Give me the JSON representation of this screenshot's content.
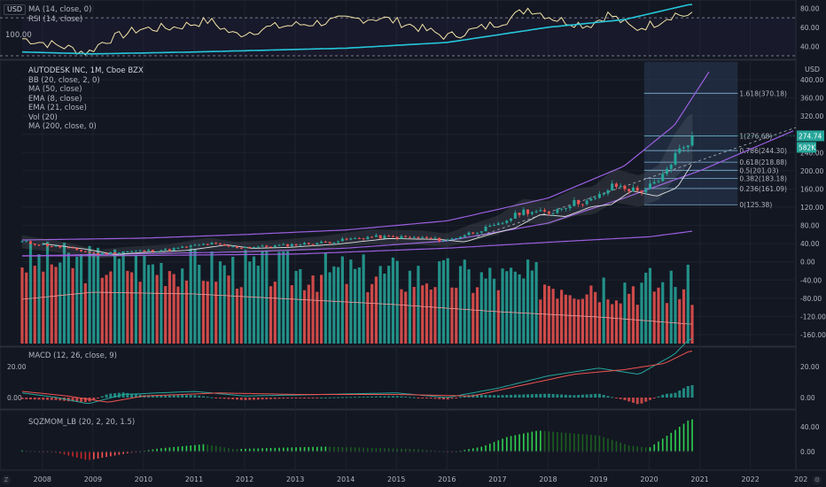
{
  "usd_label": "USD",
  "scale_button": "Z",
  "settings_button": "⚙",
  "rsi_pane": {
    "labels": [
      "MA (14, close, 0)",
      "RSI (14, close)"
    ],
    "left_value": "100.00",
    "ticks": [
      "80.00",
      "60.00",
      "40.00"
    ]
  },
  "main_pane": {
    "labels": [
      "AUTODESK INC, 1M, Cboe BZX",
      "BB (20, close, 2, 0)",
      "MA (50, close)",
      "EMA (8, close)",
      "EMA (21, close)",
      "Vol (20)",
      "MA (200, close, 0)"
    ],
    "ticks": [
      "400.00",
      "360.00",
      "320.00",
      "280.00",
      "240.00",
      "200.00",
      "160.00",
      "120.00",
      "80.00",
      "40.00",
      "0.00",
      "-40.00",
      "-80.00",
      "-120.00",
      "-160.00"
    ],
    "price_tag": "274.74",
    "volume_tag": "582K",
    "fib_levels": [
      {
        "label": "1.618(370.18)",
        "value": 370.18
      },
      {
        "label": "1(276.68)",
        "value": 276.68
      },
      {
        "label": "0.786(244.30)",
        "value": 244.3
      },
      {
        "label": "0.618(218.88)",
        "value": 218.88
      },
      {
        "label": "0.5(201.03)",
        "value": 201.03
      },
      {
        "label": "0.382(183.18)",
        "value": 183.18
      },
      {
        "label": "0.236(161.09)",
        "value": 161.09
      },
      {
        "label": "0(125.38)",
        "value": 125.38
      }
    ]
  },
  "macd_pane": {
    "label": "MACD (12, 26, close, 9)",
    "ticks": [
      "20.00",
      "0.00"
    ]
  },
  "sqz_pane": {
    "label": "SQZMOM_LB (20, 2, 20, 1.5)",
    "ticks": [
      "40.00",
      "0.00"
    ]
  },
  "x_axis": {
    "labels": [
      "2008",
      "2009",
      "2010",
      "2011",
      "2012",
      "2013",
      "2014",
      "2015",
      "2016",
      "2017",
      "2018",
      "2019",
      "2020",
      "2021",
      "2022",
      "202"
    ]
  },
  "colors": {
    "background": "#131722",
    "up": "#26a69a",
    "down": "#ef5350",
    "rsi_line": "#f3e4a8",
    "rsi_ma": "#26c6da",
    "fib_box": "#2a3a55",
    "channel": "#9c5fe0",
    "macd": "#26a69a",
    "signal": "#ef5350",
    "sqz_up": "#2fcf4f",
    "sqz_down": "#c62828"
  },
  "chart_data": {
    "type": "candlestick",
    "title": "AUTODESK INC, 1M, Cboe BZX",
    "x_range": [
      2007.6,
      2022.9
    ],
    "ylim": [
      -165,
      410
    ],
    "price_anchors": [
      [
        2007.6,
        44
      ],
      [
        2008.5,
        30
      ],
      [
        2009.1,
        17
      ],
      [
        2009.6,
        22
      ],
      [
        2010.5,
        27
      ],
      [
        2011.3,
        40
      ],
      [
        2011.8,
        32
      ],
      [
        2012.5,
        34
      ],
      [
        2013.5,
        42
      ],
      [
        2014.5,
        55
      ],
      [
        2015.5,
        53
      ],
      [
        2016.0,
        47
      ],
      [
        2016.5,
        65
      ],
      [
        2017.0,
        80
      ],
      [
        2017.5,
        112
      ],
      [
        2018.0,
        107
      ],
      [
        2018.5,
        130
      ],
      [
        2018.9,
        135
      ],
      [
        2019.3,
        168
      ],
      [
        2019.8,
        155
      ],
      [
        2020.2,
        175
      ],
      [
        2020.5,
        232
      ],
      [
        2020.8,
        270
      ]
    ],
    "fib_range": [
      2019.9,
      2021.75
    ],
    "channel_upper_anchors": [
      [
        2007.6,
        48
      ],
      [
        2010,
        52
      ],
      [
        2012,
        60
      ],
      [
        2014,
        70
      ],
      [
        2016,
        90
      ],
      [
        2018,
        140
      ],
      [
        2019.5,
        210
      ],
      [
        2020.5,
        300
      ],
      [
        2021.2,
        420
      ]
    ],
    "channel_mid_anchors": [
      [
        2007.6,
        13
      ],
      [
        2010,
        18
      ],
      [
        2012,
        22
      ],
      [
        2014,
        30
      ],
      [
        2016,
        46
      ],
      [
        2018,
        85
      ],
      [
        2019.5,
        140
      ],
      [
        2021,
        200
      ],
      [
        2022.9,
        290
      ]
    ],
    "channel_lower_anchors": [
      [
        2007.6,
        13
      ],
      [
        2010,
        14
      ],
      [
        2013,
        17
      ],
      [
        2016,
        30
      ],
      [
        2018,
        43
      ],
      [
        2020,
        55
      ],
      [
        2020.9,
        68
      ]
    ],
    "rsi_anchors": [
      [
        2007.6,
        48
      ],
      [
        2008.4,
        40
      ],
      [
        2008.9,
        33
      ],
      [
        2009.2,
        45
      ],
      [
        2009.9,
        58
      ],
      [
        2010.6,
        60
      ],
      [
        2011.3,
        67
      ],
      [
        2011.8,
        52
      ],
      [
        2012.5,
        60
      ],
      [
        2013.3,
        64
      ],
      [
        2014.0,
        68
      ],
      [
        2014.7,
        70
      ],
      [
        2015.3,
        62
      ],
      [
        2016.0,
        50
      ],
      [
        2016.6,
        58
      ],
      [
        2017.2,
        68
      ],
      [
        2017.6,
        80
      ],
      [
        2018.2,
        68
      ],
      [
        2018.8,
        62
      ],
      [
        2019.2,
        74
      ],
      [
        2019.7,
        58
      ],
      [
        2020.1,
        64
      ],
      [
        2020.5,
        74
      ],
      [
        2020.8,
        72
      ]
    ],
    "rsi_ma_anchors": [
      [
        2007.6,
        34
      ],
      [
        2009.0,
        32
      ],
      [
        2011.0,
        34
      ],
      [
        2014.0,
        38
      ],
      [
        2016.0,
        44
      ],
      [
        2018.0,
        60
      ],
      [
        2019.5,
        68
      ],
      [
        2020.8,
        84
      ]
    ],
    "macd_anchors": [
      [
        2007.6,
        3
      ],
      [
        2008.3,
        0
      ],
      [
        2008.9,
        -4
      ],
      [
        2009.6,
        2
      ],
      [
        2011.0,
        4
      ],
      [
        2012.0,
        1
      ],
      [
        2013.5,
        2
      ],
      [
        2015.0,
        3
      ],
      [
        2016.0,
        0
      ],
      [
        2017.0,
        6
      ],
      [
        2018.0,
        14
      ],
      [
        2019.0,
        19
      ],
      [
        2019.8,
        15
      ],
      [
        2020.5,
        28
      ],
      [
        2020.8,
        38
      ]
    ],
    "signal_anchors": [
      [
        2007.6,
        4
      ],
      [
        2008.5,
        1
      ],
      [
        2009.3,
        -3
      ],
      [
        2010.0,
        1
      ],
      [
        2011.5,
        3
      ],
      [
        2013.0,
        2
      ],
      [
        2015.0,
        2
      ],
      [
        2016.5,
        1
      ],
      [
        2017.5,
        8
      ],
      [
        2018.5,
        15
      ],
      [
        2019.5,
        18
      ],
      [
        2020.3,
        22
      ],
      [
        2020.8,
        30
      ]
    ],
    "sqz_anchors": [
      [
        2007.6,
        2
      ],
      [
        2008.3,
        -2
      ],
      [
        2008.9,
        -14
      ],
      [
        2009.6,
        -4
      ],
      [
        2010.3,
        5
      ],
      [
        2011.2,
        12
      ],
      [
        2011.8,
        4
      ],
      [
        2012.6,
        6
      ],
      [
        2013.6,
        8
      ],
      [
        2014.5,
        6
      ],
      [
        2015.4,
        4
      ],
      [
        2016.1,
        -1
      ],
      [
        2016.7,
        8
      ],
      [
        2017.2,
        24
      ],
      [
        2017.8,
        34
      ],
      [
        2018.4,
        30
      ],
      [
        2019.0,
        26
      ],
      [
        2019.6,
        10
      ],
      [
        2020.0,
        6
      ],
      [
        2020.5,
        34
      ],
      [
        2020.8,
        52
      ]
    ]
  }
}
